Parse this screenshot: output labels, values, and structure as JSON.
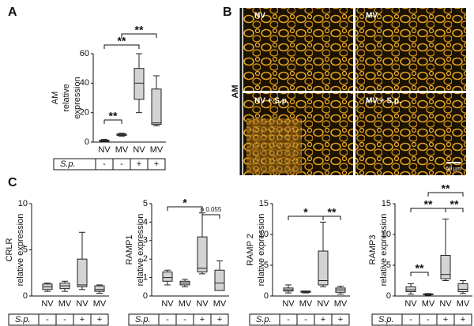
{
  "chart_data": [
    {
      "type": "box",
      "panel": "A",
      "ylabel": [
        "AM",
        "relative",
        "expression"
      ],
      "categories": [
        "NV",
        "MV",
        "NV",
        "MV"
      ],
      "row_label": "S.p.",
      "row": [
        "-",
        "-",
        "+",
        "+"
      ],
      "color": "#d3d3d3",
      "ylim": [
        0,
        60
      ],
      "yticks": [
        0,
        20,
        40,
        60
      ],
      "boxes": [
        {
          "min": 0.3,
          "q1": 0.6,
          "median": 1,
          "q3": 1.3,
          "max": 1.8
        },
        {
          "min": 4,
          "q1": 4.5,
          "median": 5,
          "q3": 5.5,
          "max": 6
        },
        {
          "min": 20,
          "q1": 29,
          "median": 40,
          "q3": 50,
          "max": 60
        },
        {
          "min": 11,
          "q1": 12,
          "median": 13,
          "q3": 36,
          "max": 45
        }
      ],
      "annotations": [
        "**",
        "**",
        "**"
      ]
    },
    {
      "type": "box",
      "panel": "C",
      "ylabel": [
        "CRLR",
        "relative expression"
      ],
      "categories": [
        "NV",
        "MV",
        "NV",
        "MV"
      ],
      "row_label": "S.p.",
      "row": [
        "-",
        "-",
        "+",
        "+"
      ],
      "color": "#d3d3d3",
      "ylim": [
        0,
        10
      ],
      "yticks": [
        0,
        5,
        10
      ],
      "boxes": [
        {
          "min": 0.5,
          "q1": 0.7,
          "median": 1,
          "q3": 1.3,
          "max": 1.4
        },
        {
          "min": 0.5,
          "q1": 0.8,
          "median": 1.1,
          "q3": 1.4,
          "max": 1.6
        },
        {
          "min": 0.7,
          "q1": 1,
          "median": 1.2,
          "q3": 4,
          "max": 6.9
        },
        {
          "min": 0.3,
          "q1": 0.5,
          "median": 0.7,
          "q3": 1.1,
          "max": 1.2
        }
      ],
      "annotations": []
    },
    {
      "type": "box",
      "ylabel": [
        "RAMP1",
        "relative expression"
      ],
      "categories": [
        "NV",
        "MV",
        "NV",
        "MV"
      ],
      "row_label": "S.p.",
      "row": [
        "-",
        "-",
        "+",
        "+"
      ],
      "color": "#d3d3d3",
      "ylim": [
        0,
        5
      ],
      "yticks": [
        0,
        1,
        2,
        3,
        4,
        5
      ],
      "boxes": [
        {
          "min": 0.6,
          "q1": 0.8,
          "median": 1,
          "q3": 1.3,
          "max": 1.4
        },
        {
          "min": 0.5,
          "q1": 0.6,
          "median": 0.7,
          "q3": 0.8,
          "max": 0.9
        },
        {
          "min": 1.2,
          "q1": 1.3,
          "median": 1.5,
          "q3": 3.2,
          "max": 4.5
        },
        {
          "min": 0.3,
          "q1": 0.3,
          "median": 0.7,
          "q3": 1.4,
          "max": 1.9
        }
      ],
      "annotations": [
        "*",
        "p 0.055"
      ]
    },
    {
      "type": "box",
      "ylabel": [
        "RAMP 2",
        "relative expression"
      ],
      "categories": [
        "NV",
        "MV",
        "NV",
        "MV"
      ],
      "row_label": "S.p.",
      "row": [
        "-",
        "-",
        "+",
        "+"
      ],
      "color": "#d3d3d3",
      "ylim": [
        0,
        15
      ],
      "yticks": [
        0,
        5,
        10,
        15
      ],
      "boxes": [
        {
          "min": 0.5,
          "q1": 0.8,
          "median": 1,
          "q3": 1.3,
          "max": 1.8
        },
        {
          "min": 0.5,
          "q1": 0.6,
          "median": 0.7,
          "q3": 0.8,
          "max": 0.8
        },
        {
          "min": 1.5,
          "q1": 1.8,
          "median": 2.5,
          "q3": 7.3,
          "max": 12
        },
        {
          "min": 0.3,
          "q1": 0.6,
          "median": 1,
          "q3": 1.3,
          "max": 1.6
        }
      ],
      "annotations": [
        "*",
        "**"
      ]
    },
    {
      "type": "box",
      "ylabel": [
        "RAMP3",
        "relative expression"
      ],
      "categories": [
        "NV",
        "MV",
        "NV",
        "MV"
      ],
      "row_label": "S.p.",
      "row": [
        "-",
        "-",
        "+",
        "+"
      ],
      "color": "#d3d3d3",
      "ylim": [
        0,
        15
      ],
      "yticks": [
        0,
        5,
        10,
        15
      ],
      "boxes": [
        {
          "min": 0.3,
          "q1": 0.7,
          "median": 1,
          "q3": 1.5,
          "max": 2
        },
        {
          "min": 0.1,
          "q1": 0.2,
          "median": 0.3,
          "q3": 0.35,
          "max": 0.4
        },
        {
          "min": 2.5,
          "q1": 2.8,
          "median": 3.5,
          "q3": 6.6,
          "max": 12.5
        },
        {
          "min": 0.4,
          "q1": 0.7,
          "median": 1.1,
          "q3": 2,
          "max": 2.5
        }
      ],
      "annotations": [
        "**",
        "**",
        "**",
        "**"
      ]
    }
  ],
  "images": {
    "panel": "B",
    "side_label": "AM",
    "tiles": [
      "NV",
      "MV",
      "NV + S.p.",
      "MV + S.p."
    ],
    "scale_bar": "50 µm"
  }
}
